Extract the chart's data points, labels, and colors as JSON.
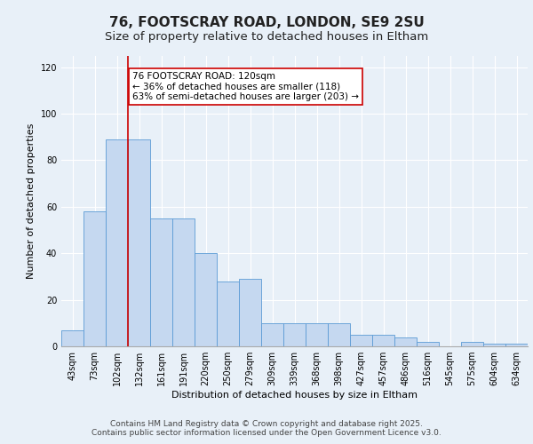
{
  "title_line1": "76, FOOTSCRAY ROAD, LONDON, SE9 2SU",
  "title_line2": "Size of property relative to detached houses in Eltham",
  "xlabel": "Distribution of detached houses by size in Eltham",
  "ylabel": "Number of detached properties",
  "categories": [
    "43sqm",
    "73sqm",
    "102sqm",
    "132sqm",
    "161sqm",
    "191sqm",
    "220sqm",
    "250sqm",
    "279sqm",
    "309sqm",
    "339sqm",
    "368sqm",
    "398sqm",
    "427sqm",
    "457sqm",
    "486sqm",
    "516sqm",
    "545sqm",
    "575sqm",
    "604sqm",
    "634sqm"
  ],
  "values": [
    7,
    58,
    89,
    89,
    55,
    55,
    40,
    28,
    29,
    10,
    10,
    10,
    10,
    5,
    5,
    4,
    2,
    0,
    2,
    1,
    1
  ],
  "bar_color": "#c5d8f0",
  "bar_edge_color": "#5b9bd5",
  "annotation_text": "76 FOOTSCRAY ROAD: 120sqm\n← 36% of detached houses are smaller (118)\n63% of semi-detached houses are larger (203) →",
  "annotation_box_color": "#ffffff",
  "annotation_box_edge": "#cc0000",
  "vline_color": "#cc0000",
  "bg_color": "#e8f0f8",
  "plot_bg_color": "#e8f0f8",
  "grid_color": "#ffffff",
  "ylim": [
    0,
    125
  ],
  "yticks": [
    0,
    20,
    40,
    60,
    80,
    100,
    120
  ],
  "footer_line1": "Contains HM Land Registry data © Crown copyright and database right 2025.",
  "footer_line2": "Contains public sector information licensed under the Open Government Licence v3.0.",
  "title_fontsize": 11,
  "subtitle_fontsize": 9.5,
  "axis_label_fontsize": 8,
  "tick_fontsize": 7,
  "annotation_fontsize": 7.5,
  "footer_fontsize": 6.5
}
